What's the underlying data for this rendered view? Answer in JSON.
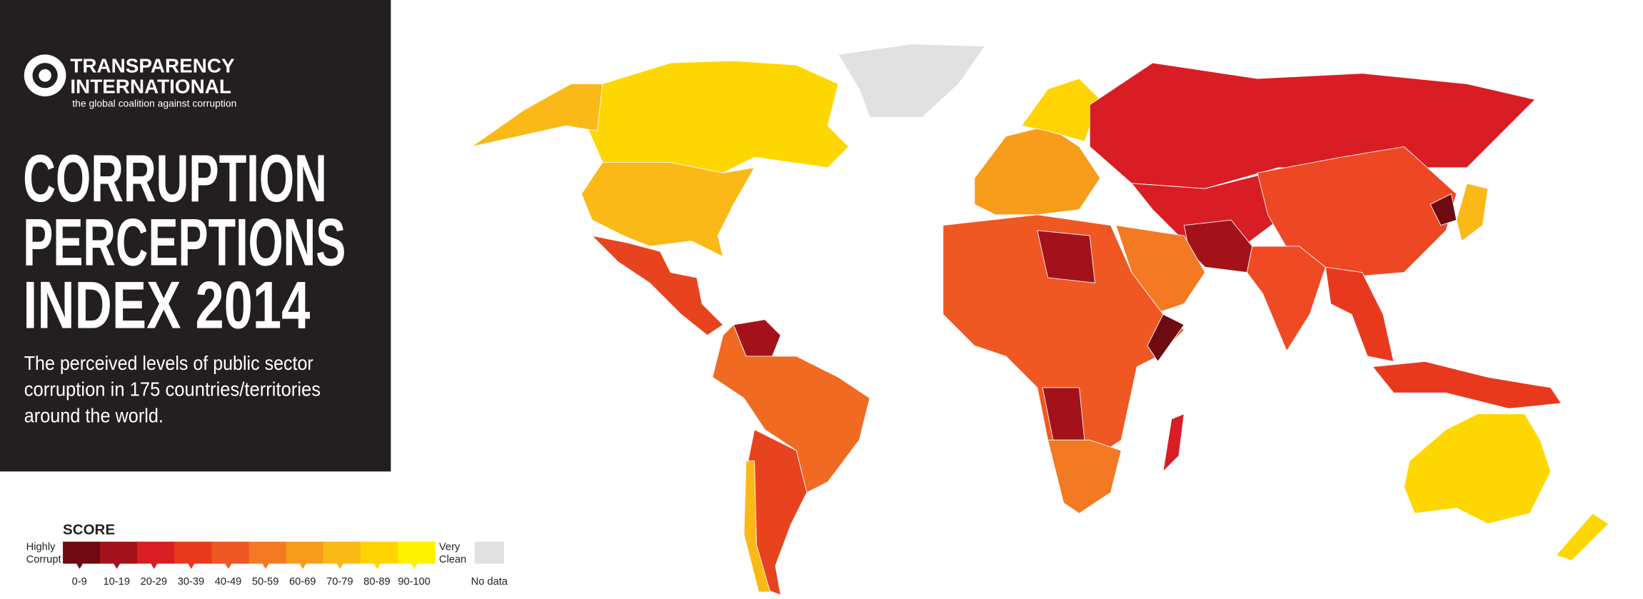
{
  "header": {
    "logo_line1": "TRANSPARENCY",
    "logo_line2": "INTERNATIONAL",
    "tagline": "the global coalition against corruption"
  },
  "title": [
    "CORRUPTION",
    "PERCEPTIONS",
    "INDEX 2014"
  ],
  "subtitle": [
    "The perceived levels of public sector",
    "corruption in 175 countries/territories",
    "around the world."
  ],
  "legend": {
    "title": "SCORE",
    "low_label": [
      "Highly",
      "Corrupt"
    ],
    "high_label": [
      "Very",
      "Clean"
    ],
    "bins": [
      {
        "label": "0-9",
        "color": "#6e0a10"
      },
      {
        "label": "10-19",
        "color": "#a3121a"
      },
      {
        "label": "20-29",
        "color": "#d81e24"
      },
      {
        "label": "30-39",
        "color": "#e8391f"
      },
      {
        "label": "40-49",
        "color": "#ef5723"
      },
      {
        "label": "50-59",
        "color": "#f37a22"
      },
      {
        "label": "60-69",
        "color": "#f89c1c"
      },
      {
        "label": "70-79",
        "color": "#fbb917"
      },
      {
        "label": "80-89",
        "color": "#ffd400"
      },
      {
        "label": "90-100",
        "color": "#fff200"
      }
    ],
    "no_data": {
      "label": "No data",
      "color": "#e1e1e1"
    }
  }
}
